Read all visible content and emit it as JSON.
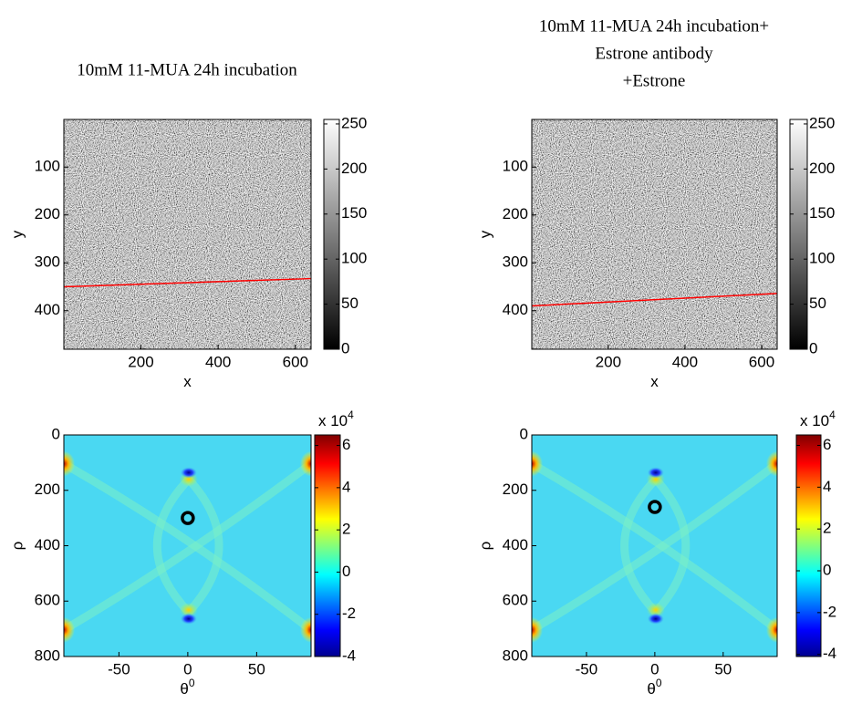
{
  "chart_data": [
    {
      "type": "image",
      "title": [
        "10mM 11-MUA 24h incubation"
      ],
      "xlabel": "x",
      "ylabel": "y",
      "xlim": [
        0.5,
        640.5
      ],
      "ylim": [
        0.5,
        480.5
      ],
      "y_reversed": true,
      "xticks": [
        200,
        400,
        600
      ],
      "yticks": [
        100,
        200,
        300,
        400
      ],
      "line": {
        "x": [
          1,
          640
        ],
        "y": [
          350,
          333
        ],
        "color": "#ff0000"
      },
      "colorbar": {
        "colormap": "gray",
        "ylim": [
          0,
          255
        ],
        "yticks": [
          0,
          50,
          100,
          150,
          200,
          250
        ]
      }
    },
    {
      "type": "image",
      "title": [
        "10mM 11-MUA 24h incubation+",
        "Estrone antibody",
        "+Estrone"
      ],
      "xlabel": "x",
      "ylabel": "y",
      "xlim": [
        0.5,
        640.5
      ],
      "ylim": [
        0.5,
        480.5
      ],
      "y_reversed": true,
      "xticks": [
        200,
        400,
        600
      ],
      "yticks": [
        100,
        200,
        300,
        400
      ],
      "line": {
        "x": [
          1,
          640
        ],
        "y": [
          390,
          364
        ],
        "color": "#ff0000"
      },
      "colorbar": {
        "colormap": "gray",
        "ylim": [
          0,
          255
        ],
        "yticks": [
          0,
          50,
          100,
          150,
          200,
          250
        ]
      }
    },
    {
      "type": "hough",
      "xlabel": "θ",
      "xlabel_sup": "0",
      "ylabel": "ρ",
      "xlim": [
        -90,
        89.5
      ],
      "ylim": [
        0,
        800
      ],
      "y_reversed": true,
      "xticks": [
        -50,
        0,
        50
      ],
      "yticks": [
        0,
        200,
        400,
        600,
        800
      ],
      "marker": {
        "x": [
          0
        ],
        "y": [
          300
        ],
        "color": "#000000"
      },
      "colorbar": {
        "colormap": "jet",
        "ylim": [
          -4,
          6.5
        ],
        "yticks": [
          -4,
          -2,
          0,
          2,
          4,
          6
        ],
        "multiplier": "x 10",
        "exponent": "4"
      }
    },
    {
      "type": "hough",
      "xlabel": "θ",
      "xlabel_sup": "0",
      "ylabel": "ρ",
      "xlim": [
        -90,
        89.5
      ],
      "ylim": [
        0,
        800
      ],
      "y_reversed": true,
      "xticks": [
        -50,
        0,
        50
      ],
      "yticks": [
        0,
        200,
        400,
        600,
        800
      ],
      "marker": {
        "x": [
          0
        ],
        "y": [
          260
        ],
        "color": "#000000"
      },
      "colorbar": {
        "colormap": "jet",
        "ylim": [
          -4.1,
          6.5
        ],
        "yticks": [
          -4,
          -2,
          0,
          2,
          4,
          6
        ],
        "multiplier": "x 10",
        "exponent": "4"
      }
    }
  ]
}
